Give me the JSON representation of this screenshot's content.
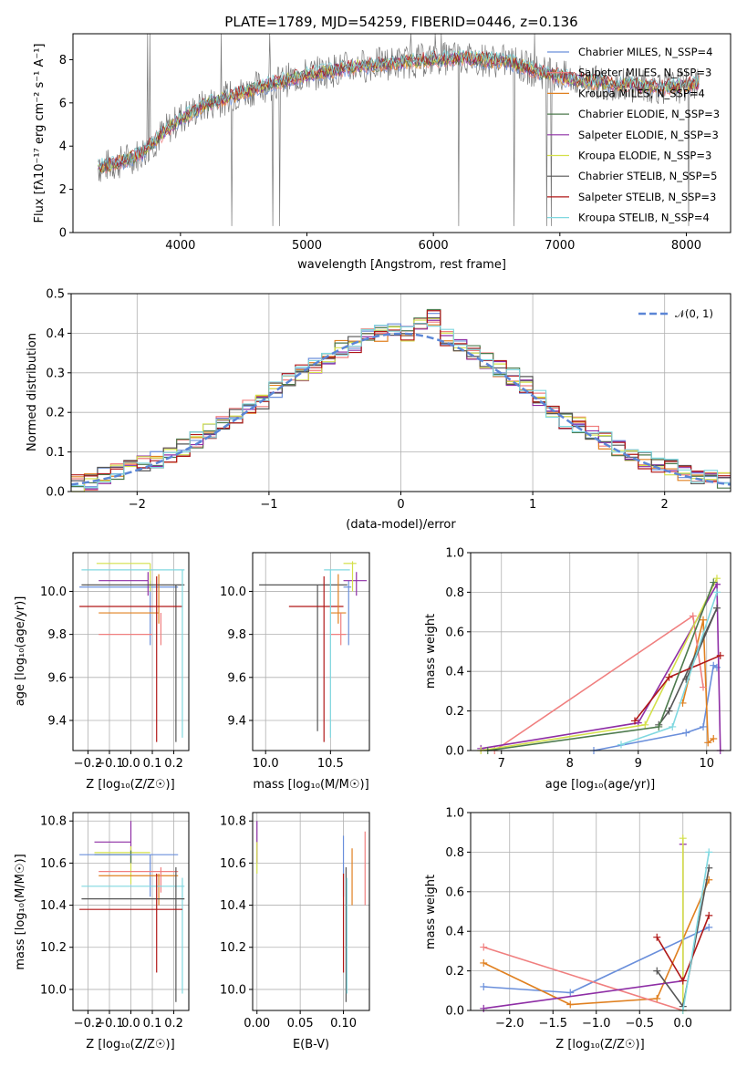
{
  "title": "PLATE=1789, MJD=54259, FIBERID=0446, z=0.136",
  "chart_data": [
    {
      "type": "line",
      "title": "PLATE=1789, MJD=54259, FIBERID=0446, z=0.136",
      "xlabel": "wavelength [Angstrom, rest frame]",
      "ylabel": "Flux [f_λ 10^-17 erg cm^-2 s^-1 A^-1]",
      "xlim": [
        3150,
        8350
      ],
      "ylim": [
        0,
        9.2
      ],
      "xticks": [
        4000,
        5000,
        6000,
        7000,
        8000
      ],
      "yticks": [
        0,
        2,
        4,
        6,
        8
      ],
      "legend_position": "top-right",
      "data_curve": {
        "name": "data",
        "x": [
          3350,
          3500,
          3700,
          3900,
          4000,
          4200,
          4400,
          4600,
          4800,
          5000,
          5200,
          5400,
          5600,
          5800,
          6000,
          6200,
          6400,
          6600,
          6800,
          7000,
          7200,
          7400,
          7600,
          7800,
          8000,
          8100
        ],
        "values": [
          3.0,
          3.2,
          3.7,
          4.8,
          5.3,
          5.9,
          6.3,
          6.7,
          7.0,
          7.3,
          7.5,
          7.7,
          7.8,
          7.9,
          8.0,
          8.1,
          8.0,
          7.9,
          7.5,
          7.2,
          7.0,
          6.9,
          6.8,
          6.7,
          6.8,
          6.9
        ]
      },
      "series": [
        {
          "name": "Chabrier MILES, N_SSP=4",
          "color": "#6a8fdb"
        },
        {
          "name": "Salpeter MILES, N_SSP=3",
          "color": "#f07f7f"
        },
        {
          "name": "Kroupa MILES, N_SSP=4",
          "color": "#e08020"
        },
        {
          "name": "Chabrier ELODIE, N_SSP=3",
          "color": "#4d7a4d"
        },
        {
          "name": "Salpeter ELODIE, N_SSP=3",
          "color": "#8e2ea5"
        },
        {
          "name": "Kroupa ELODIE, N_SSP=3",
          "color": "#d4e04a"
        },
        {
          "name": "Chabrier STELIB, N_SSP=5",
          "color": "#555555"
        },
        {
          "name": "Salpeter STELIB, N_SSP=3",
          "color": "#b01818"
        },
        {
          "name": "Kroupa STELIB, N_SSP=4",
          "color": "#80d8e0"
        }
      ]
    },
    {
      "type": "bar",
      "xlabel": "(data-model)/error",
      "ylabel": "Normed distribution",
      "xlim": [
        -2.5,
        2.5
      ],
      "ylim": [
        0,
        0.5
      ],
      "xticks": [
        -2,
        -1,
        0,
        1,
        2
      ],
      "yticks": [
        0.0,
        0.1,
        0.2,
        0.3,
        0.4,
        0.5
      ],
      "grid": true,
      "legend_position": "top-right",
      "reference_curve": {
        "name": "𝒩(0,1)",
        "color": "#5b86d6"
      },
      "histogram_bin_width": 0.1,
      "histogram_centers": [
        -2.45,
        -2.35,
        -2.25,
        -2.15,
        -2.05,
        -1.95,
        -1.85,
        -1.75,
        -1.65,
        -1.55,
        -1.45,
        -1.35,
        -1.25,
        -1.15,
        -1.05,
        -0.95,
        -0.85,
        -0.75,
        -0.65,
        -0.55,
        -0.45,
        -0.35,
        -0.25,
        -0.15,
        -0.05,
        0.05,
        0.15,
        0.25,
        0.35,
        0.45,
        0.55,
        0.65,
        0.75,
        0.85,
        0.95,
        1.05,
        1.15,
        1.25,
        1.35,
        1.45,
        1.55,
        1.65,
        1.75,
        1.85,
        1.95,
        2.05,
        2.15,
        2.25,
        2.35,
        2.45
      ],
      "histogram_values": [
        0.02,
        0.025,
        0.04,
        0.05,
        0.06,
        0.07,
        0.08,
        0.09,
        0.11,
        0.13,
        0.15,
        0.17,
        0.19,
        0.21,
        0.23,
        0.26,
        0.28,
        0.3,
        0.32,
        0.34,
        0.36,
        0.37,
        0.39,
        0.4,
        0.41,
        0.4,
        0.42,
        0.44,
        0.39,
        0.37,
        0.35,
        0.33,
        0.31,
        0.29,
        0.27,
        0.24,
        0.21,
        0.18,
        0.17,
        0.15,
        0.13,
        0.11,
        0.1,
        0.08,
        0.07,
        0.06,
        0.05,
        0.04,
        0.035,
        0.03
      ]
    },
    {
      "type": "scatter",
      "xlabel": "Z [log10(Z/Z☉)]",
      "ylabel": "age [log10(age/yr)]",
      "xlim": [
        -0.27,
        0.27
      ],
      "ylim": [
        9.26,
        10.18
      ],
      "xticks": [
        -0.2,
        -0.1,
        0.0,
        0.1,
        0.2
      ],
      "yticks": [
        9.4,
        9.6,
        9.8,
        10.0
      ],
      "points": [
        {
          "color": "#6a8fdb",
          "x": [
            -0.24,
            0.09
          ],
          "y": [
            9.75,
            10.05
          ]
        },
        {
          "color": "#e08020",
          "x": [
            -0.15,
            0.13
          ],
          "y": [
            9.85,
            10.07
          ]
        },
        {
          "color": "#f07f7f",
          "x": [
            -0.15,
            0.14
          ],
          "y": [
            9.75,
            9.9
          ]
        },
        {
          "color": "#8e2ea5",
          "x": [
            -0.15,
            0.07
          ],
          "y": [
            9.98,
            10.09
          ]
        },
        {
          "color": "#d4e04a",
          "x": [
            -0.16,
            0.09
          ],
          "y": [
            10.0,
            10.13
          ]
        },
        {
          "color": "#555555",
          "x": [
            -0.23,
            0.25
          ],
          "y": [
            9.3,
            10.03
          ]
        },
        {
          "color": "#b01818",
          "x": [
            -0.24,
            0.24
          ],
          "y": [
            9.3,
            10.07
          ]
        },
        {
          "color": "#80d8e0",
          "x": [
            -0.23,
            0.25
          ],
          "y": [
            9.3,
            10.1
          ]
        }
      ]
    },
    {
      "type": "scatter",
      "xlabel": "mass [log10(M/M☉)]",
      "xlim": [
        9.9,
        10.8
      ],
      "ylim": [
        9.26,
        10.18
      ],
      "xticks": [
        10.0,
        10.5
      ],
      "yticks": [
        9.4,
        9.6,
        9.8,
        10.0
      ]
    },
    {
      "type": "line",
      "xlabel": "age  [log10(age/yr)]",
      "ylabel": "mass weight",
      "xlim": [
        6.55,
        10.35
      ],
      "ylim": [
        0,
        1.0
      ],
      "xticks": [
        7,
        8,
        9,
        10
      ],
      "yticks": [
        0.0,
        0.2,
        0.4,
        0.6,
        0.8,
        1.0
      ],
      "series": [
        {
          "color": "#6a8fdb",
          "x": [
            8.35,
            9.7,
            9.95,
            10.1,
            10.15
          ],
          "y": [
            0.0,
            0.09,
            0.12,
            0.43,
            0.42
          ]
        },
        {
          "color": "#e08020",
          "x": [
            9.65,
            9.95,
            10.02,
            10.1
          ],
          "y": [
            0.24,
            0.66,
            0.04,
            0.06
          ]
        },
        {
          "color": "#f07f7f",
          "x": [
            6.9,
            9.8,
            9.95
          ],
          "y": [
            0.0,
            0.68,
            0.32
          ]
        },
        {
          "color": "#8e2ea5",
          "x": [
            6.7,
            9.0,
            10.15,
            10.2
          ],
          "y": [
            0.01,
            0.14,
            0.84,
            0.0
          ]
        },
        {
          "color": "#d4e04a",
          "x": [
            6.7,
            9.1,
            10.15
          ],
          "y": [
            0.0,
            0.13,
            0.87
          ]
        },
        {
          "color": "#555555",
          "x": [
            9.3,
            9.45,
            10.15,
            9.7
          ],
          "y": [
            0.13,
            0.2,
            0.72,
            0.36
          ]
        },
        {
          "color": "#b01818",
          "x": [
            8.95,
            9.45,
            10.2
          ],
          "y": [
            0.15,
            0.37,
            0.48
          ]
        },
        {
          "color": "#80d8e0",
          "x": [
            8.75,
            9.5,
            10.15
          ],
          "y": [
            0.03,
            0.12,
            0.8
          ]
        },
        {
          "color": "#4d7a4d",
          "x": [
            6.8,
            9.3,
            10.1
          ],
          "y": [
            0.0,
            0.12,
            0.85
          ]
        }
      ]
    },
    {
      "type": "scatter",
      "xlabel": "Z [log10(Z/Z☉)]",
      "ylabel": "mass [log10(M/M☉)]",
      "xlim": [
        -0.27,
        0.27
      ],
      "ylim": [
        9.9,
        10.84
      ],
      "xticks": [
        -0.2,
        -0.1,
        0.0,
        0.1,
        0.2
      ],
      "yticks": [
        10.0,
        10.2,
        10.4,
        10.6,
        10.8
      ]
    },
    {
      "type": "scatter",
      "xlabel": "E(B-V)",
      "xlim": [
        -0.005,
        0.13
      ],
      "ylim": [
        9.9,
        10.84
      ],
      "xticks": [
        0.0,
        0.05,
        0.1
      ],
      "yticks": [
        10.0,
        10.2,
        10.4,
        10.6,
        10.8
      ]
    },
    {
      "type": "line",
      "xlabel": "Z [log10(Z/Z☉)]",
      "ylabel": "mass weight",
      "xlim": [
        -2.45,
        0.55
      ],
      "ylim": [
        0,
        1.0
      ],
      "xticks": [
        -2.0,
        -1.5,
        -1.0,
        -0.5,
        0.0
      ],
      "yticks": [
        0.0,
        0.2,
        0.4,
        0.6,
        0.8,
        1.0
      ],
      "series": [
        {
          "color": "#6a8fdb",
          "x": [
            -2.3,
            -1.3,
            0.3
          ],
          "y": [
            0.12,
            0.09,
            0.42
          ]
        },
        {
          "color": "#e08020",
          "x": [
            -2.3,
            -1.3,
            -0.3,
            0.3
          ],
          "y": [
            0.24,
            0.03,
            0.06,
            0.66
          ]
        },
        {
          "color": "#f07f7f",
          "x": [
            -2.3,
            0.0
          ],
          "y": [
            0.32,
            0.0
          ]
        },
        {
          "color": "#8e2ea5",
          "x": [
            -2.3,
            0.0,
            0.0
          ],
          "y": [
            0.01,
            0.15,
            0.84
          ]
        },
        {
          "color": "#d4e04a",
          "x": [
            0.0,
            0.0
          ],
          "y": [
            0.0,
            0.87
          ]
        },
        {
          "color": "#555555",
          "x": [
            -0.3,
            0.0,
            0.3
          ],
          "y": [
            0.2,
            0.02,
            0.72
          ]
        },
        {
          "color": "#b01818",
          "x": [
            -0.3,
            0.0,
            0.3
          ],
          "y": [
            0.37,
            0.15,
            0.48
          ]
        },
        {
          "color": "#80d8e0",
          "x": [
            0.0,
            0.3
          ],
          "y": [
            0.0,
            0.8
          ]
        }
      ]
    }
  ],
  "labels": {
    "p1_x": "wavelength [Angstrom, rest frame]",
    "p1_y": "Flux [f",
    "p2_x": "(data-model)/error",
    "p2_y": "Normed distribution",
    "p3_x": "Z [log",
    "p3_y": "age  [log",
    "p4_x": "mass [log",
    "p5_x": "age  [log",
    "p5_y": "mass weight",
    "p6_x": "Z [log",
    "p6_y": "mass [log",
    "p7_x": "E(B-V)",
    "p8_x": "Z [log",
    "p8_y": "mass weight",
    "normal_legend": "𝒩(0, 1)"
  }
}
